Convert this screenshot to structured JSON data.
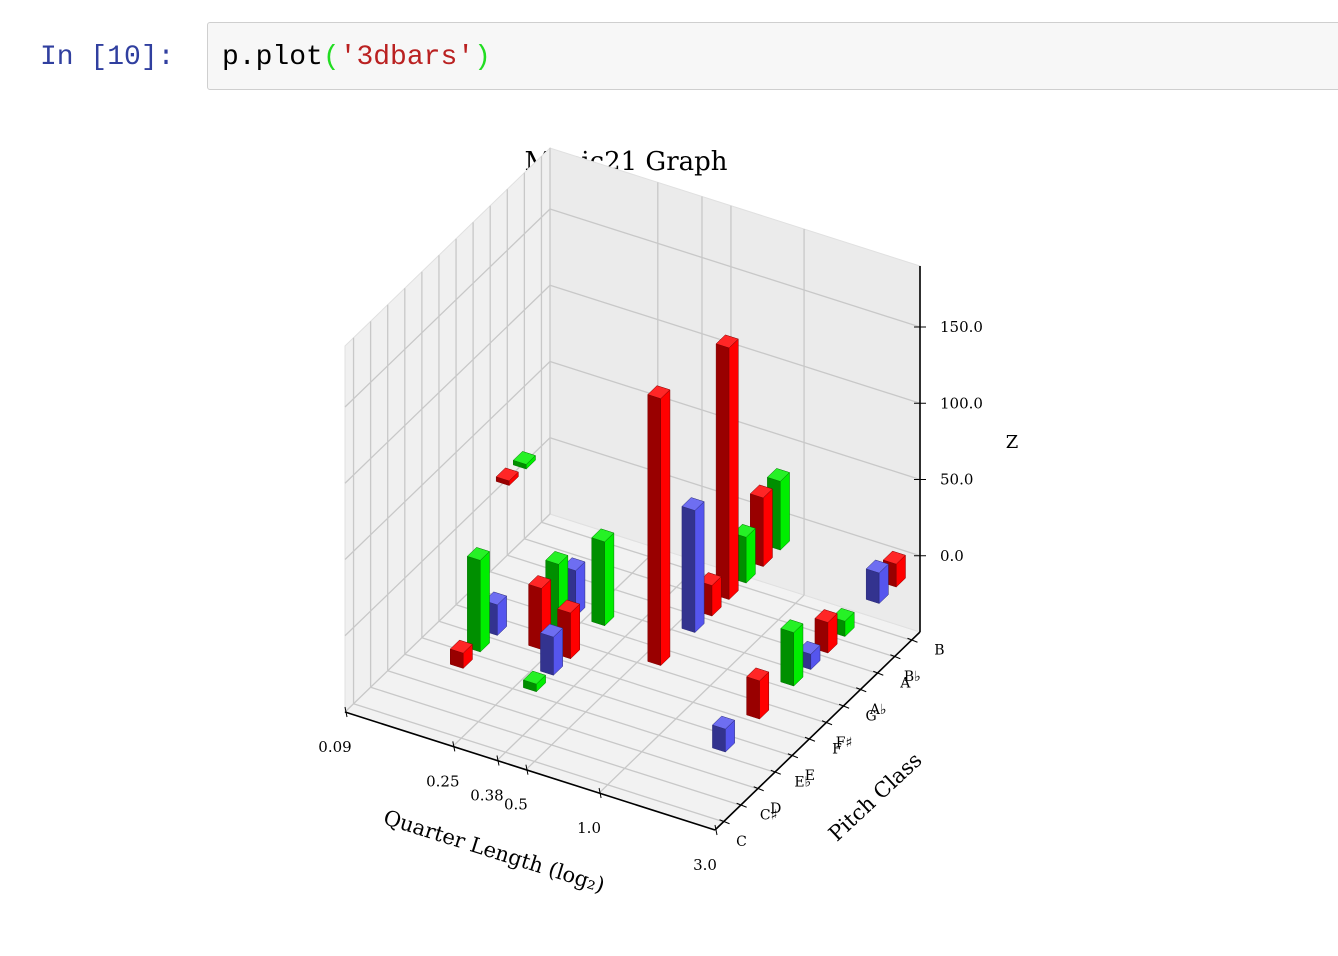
{
  "cell": {
    "prompt": "In [10]:",
    "code": [
      "p.plot",
      "(",
      "'3dbars'",
      ")"
    ]
  },
  "chart_data": {
    "type": "bar3d",
    "title": "Music21 Graph",
    "xlabel": "Quarter Length (log₂)",
    "ylabel": "Pitch Class",
    "zlabel": "Z",
    "xscale": "log2",
    "xlim": [
      0.09,
      3.0
    ],
    "xticks": [
      0.09,
      0.25,
      0.38,
      0.5,
      {
        "value": 1,
        "label": "1.0"
      },
      {
        "value": 3,
        "label": "3.0"
      }
    ],
    "categories": [
      "C",
      "C♯",
      "D",
      "E♭",
      "E",
      "F",
      "F♯",
      "G",
      "A♭",
      "A",
      "B♭",
      "B"
    ],
    "zlim": [
      -50,
      190
    ],
    "zticks": [
      {
        "value": 0,
        "label": "0.0"
      },
      {
        "value": 50,
        "label": "50.0"
      },
      {
        "value": 100,
        "label": "100.0"
      },
      {
        "value": 150,
        "label": "150.0"
      }
    ],
    "grid": true,
    "bars": [
      {
        "x": 0.09,
        "y": 9,
        "z": 3,
        "color": "#ff0000"
      },
      {
        "x": 0.09,
        "y": 10,
        "z": 3,
        "color": "#00ee00"
      },
      {
        "x": 0.25,
        "y": 0,
        "z": 10,
        "color": "#ff0000"
      },
      {
        "x": 0.25,
        "y": 1,
        "z": 60,
        "color": "#00ee00"
      },
      {
        "x": 0.25,
        "y": 2,
        "z": 20,
        "color": "#5555ee"
      },
      {
        "x": 0.38,
        "y": 2,
        "z": 40,
        "color": "#ff0000"
      },
      {
        "x": 0.38,
        "y": 3,
        "z": 45,
        "color": "#00ee00"
      },
      {
        "x": 0.38,
        "y": 4,
        "z": 30,
        "color": "#5555ee"
      },
      {
        "x": 0.5,
        "y": 0,
        "z": 5,
        "color": "#00ee00"
      },
      {
        "x": 0.5,
        "y": 1,
        "z": 25,
        "color": "#5555ee"
      },
      {
        "x": 0.5,
        "y": 2,
        "z": 30,
        "color": "#ff0000"
      },
      {
        "x": 0.5,
        "y": 4,
        "z": 55,
        "color": "#00ee00"
      },
      {
        "x": 1,
        "y": 3,
        "z": 175,
        "color": "#ff0000"
      },
      {
        "x": 1,
        "y": 5,
        "z": 80,
        "color": "#5555ee"
      },
      {
        "x": 1,
        "y": 6,
        "z": 20,
        "color": "#ff0000"
      },
      {
        "x": 1,
        "y": 7,
        "z": 165,
        "color": "#ff0000"
      },
      {
        "x": 1,
        "y": 8,
        "z": 30,
        "color": "#00ee00"
      },
      {
        "x": 1,
        "y": 9,
        "z": 45,
        "color": "#ff0000"
      },
      {
        "x": 1,
        "y": 10,
        "z": 45,
        "color": "#00ee00"
      },
      {
        "x": 3,
        "y": 0,
        "z": 15,
        "color": "#5555ee"
      },
      {
        "x": 3,
        "y": 2,
        "z": 25,
        "color": "#ff0000"
      },
      {
        "x": 3,
        "y": 4,
        "z": 35,
        "color": "#00ee00"
      },
      {
        "x": 3,
        "y": 5,
        "z": 10,
        "color": "#5555ee"
      },
      {
        "x": 3,
        "y": 6,
        "z": 20,
        "color": "#ff0000"
      },
      {
        "x": 3,
        "y": 7,
        "z": 10,
        "color": "#00ee00"
      },
      {
        "x": 3,
        "y": 9,
        "z": 20,
        "color": "#5555ee"
      },
      {
        "x": 3,
        "y": 10,
        "z": 15,
        "color": "#ff0000"
      }
    ]
  }
}
